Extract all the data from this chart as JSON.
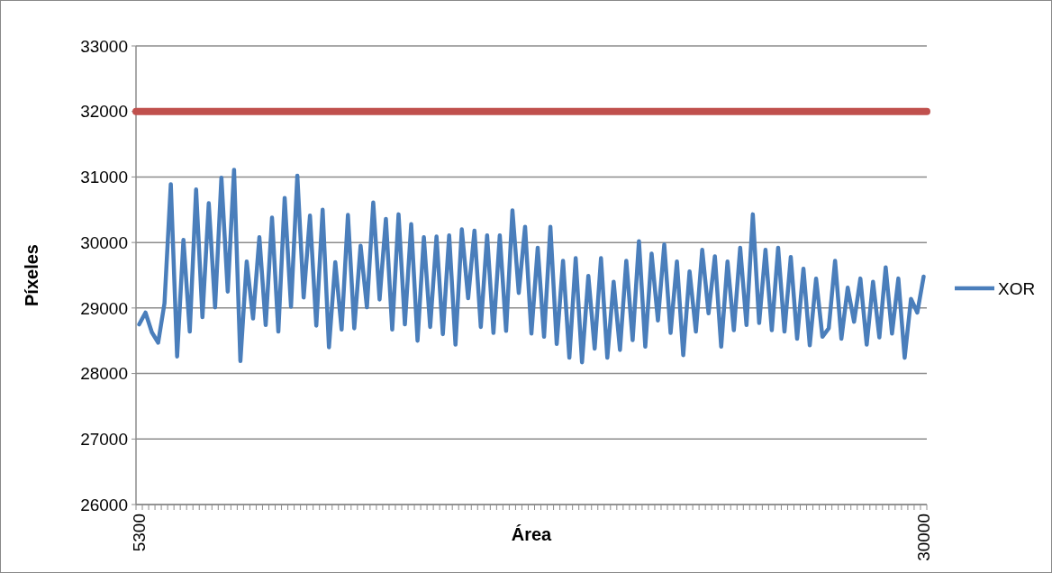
{
  "chart_data": {
    "type": "line",
    "xlabel": "Área",
    "ylabel": "Píxeles",
    "categories": [
      "5300",
      null,
      null,
      null,
      null,
      null,
      null,
      null,
      null,
      null,
      null,
      null,
      null,
      null,
      null,
      null,
      null,
      null,
      null,
      null,
      null,
      null,
      null,
      null,
      null,
      null,
      null,
      null,
      null,
      null,
      null,
      null,
      null,
      null,
      null,
      null,
      null,
      null,
      null,
      null,
      null,
      null,
      null,
      null,
      null,
      null,
      null,
      null,
      null,
      null,
      null,
      null,
      null,
      null,
      null,
      null,
      null,
      null,
      null,
      null,
      null,
      null,
      null,
      null,
      null,
      null,
      null,
      null,
      null,
      null,
      null,
      null,
      null,
      null,
      null,
      null,
      null,
      null,
      null,
      null,
      null,
      null,
      null,
      null,
      null,
      null,
      null,
      null,
      null,
      null,
      null,
      null,
      null,
      null,
      null,
      null,
      null,
      null,
      null,
      null,
      null,
      null,
      null,
      null,
      null,
      null,
      null,
      null,
      null,
      null,
      null,
      null,
      null,
      null,
      null,
      null,
      null,
      null,
      null,
      null,
      null,
      null,
      null,
      null,
      "30000"
    ],
    "series": [
      {
        "name": "XOR",
        "color": "#4a7ebb",
        "values": [
          28750,
          28930,
          28630,
          28470,
          29070,
          30890,
          28260,
          30040,
          28640,
          30810,
          28860,
          30600,
          29010,
          30990,
          29250,
          31110,
          28190,
          29710,
          28840,
          30080,
          28740,
          30380,
          28640,
          30680,
          29020,
          31020,
          29160,
          30410,
          28730,
          30500,
          28400,
          29700,
          28670,
          30420,
          28690,
          29950,
          29010,
          30610,
          29130,
          30360,
          28670,
          30430,
          28750,
          30280,
          28500,
          30080,
          28710,
          30090,
          28600,
          30110,
          28440,
          30200,
          29150,
          30180,
          28710,
          30110,
          28620,
          30110,
          28650,
          30490,
          29230,
          30240,
          28610,
          29920,
          28560,
          30240,
          28450,
          29720,
          28240,
          29760,
          28170,
          29490,
          28380,
          29760,
          28240,
          29400,
          28360,
          29720,
          28510,
          30020,
          28410,
          29830,
          28810,
          29970,
          28620,
          29710,
          28280,
          29560,
          28640,
          29890,
          28920,
          29790,
          28410,
          29710,
          28660,
          29920,
          28740,
          30430,
          28770,
          29890,
          28660,
          29920,
          28640,
          29780,
          28530,
          29600,
          28430,
          29450,
          28560,
          28690,
          29720,
          28530,
          29310,
          28790,
          29450,
          28440,
          29400,
          28550,
          29620,
          28610,
          29450,
          28240,
          29140,
          28930,
          29480
        ]
      }
    ],
    "ylim": [
      26000,
      33000
    ],
    "yticks": [
      26000,
      27000,
      28000,
      29000,
      30000,
      31000,
      32000,
      33000
    ],
    "ref_lines": [
      {
        "axis": "y",
        "value": 32000,
        "color": "#c0504d"
      }
    ],
    "grid": "y",
    "legend": "right",
    "line_style": "solid",
    "marker": "none"
  }
}
